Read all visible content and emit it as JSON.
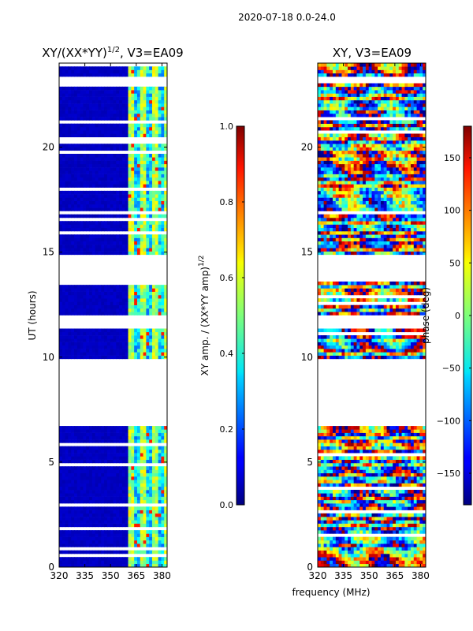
{
  "figure": {
    "suptitle": "2020-07-18 0.0-24.0",
    "shared_xlabel": "frequency (MHz)"
  },
  "chart_data": [
    {
      "type": "heatmap",
      "title": "XY/(XX*YY)",
      "title_sup": "1/2",
      "title_suffix": ", V3=EA09",
      "ylabel": "UT (hours)",
      "xlim": [
        320,
        383
      ],
      "ylim": [
        0,
        24
      ],
      "xticks": [
        320,
        335,
        350,
        365,
        380
      ],
      "yticks": [
        0,
        5,
        10,
        15,
        20
      ],
      "colorbar": {
        "label": "XY amp. / (XX*YY amp)",
        "label_sup": "1/2",
        "range": [
          0.0,
          1.0
        ],
        "ticks": [
          "0.0",
          "0.2",
          "0.4",
          "0.6",
          "0.8",
          "1.0"
        ],
        "tick_values": [
          0.0,
          0.2,
          0.4,
          0.6,
          0.8,
          1.0
        ]
      },
      "data_ut_ranges": [
        [
          0,
          6.7
        ],
        [
          9.9,
          11.4
        ],
        [
          12.0,
          13.6
        ],
        [
          14.9,
          16.8
        ],
        [
          17.0,
          23.0
        ],
        [
          23.3,
          24.0
        ]
      ],
      "gap_ut_ranges": [
        [
          6.7,
          9.9
        ],
        [
          11.4,
          12.0
        ],
        [
          13.6,
          14.9
        ],
        [
          23.0,
          23.3
        ]
      ],
      "signal_band_mhz": [
        360,
        383
      ]
    },
    {
      "type": "heatmap",
      "title": "XY, V3=EA09",
      "ylabel": "",
      "xlim": [
        320,
        383
      ],
      "ylim": [
        0,
        24
      ],
      "xticks": [
        320,
        335,
        350,
        365,
        380
      ],
      "yticks": [
        0,
        5,
        10,
        15,
        20
      ],
      "colorbar": {
        "label": "phase (deg)",
        "range": [
          -180,
          180
        ],
        "ticks": [
          "150",
          "100",
          "50",
          "0",
          "−50",
          "−100",
          "−150"
        ],
        "tick_values": [
          150,
          100,
          50,
          0,
          -50,
          -100,
          -150
        ]
      },
      "data_ut_ranges": [
        [
          0,
          6.7
        ],
        [
          9.9,
          11.4
        ],
        [
          12.0,
          13.6
        ],
        [
          14.9,
          16.8
        ],
        [
          17.0,
          23.0
        ],
        [
          23.3,
          24.0
        ]
      ],
      "gap_ut_ranges": [
        [
          6.7,
          9.9
        ],
        [
          11.4,
          12.0
        ],
        [
          13.6,
          14.9
        ],
        [
          23.0,
          23.3
        ]
      ]
    }
  ]
}
